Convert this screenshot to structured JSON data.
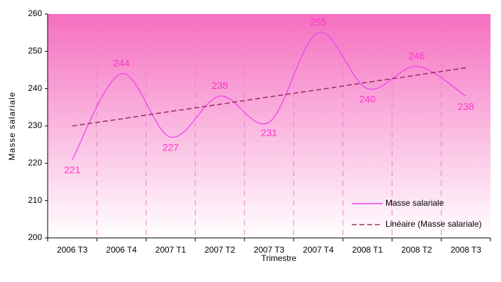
{
  "chart_data": {
    "type": "line",
    "xlabel": "Trimestre",
    "ylabel": "Masse salariale",
    "categories": [
      "2006 T3",
      "2006 T4",
      "2007 T1",
      "2007 T2",
      "2007 T3",
      "2007 T4",
      "2008 T1",
      "2008 T2",
      "2008 T3"
    ],
    "series": [
      {
        "name": "Masse salariale",
        "color": "#ee44ee",
        "values": [
          221,
          244,
          227,
          238,
          231,
          255,
          240,
          246,
          238
        ],
        "smooth": true,
        "data_labels": true
      },
      {
        "name": "Linéaire (Masse salariale)",
        "color": "#993366",
        "values": [
          230.0,
          231.9,
          233.9,
          235.8,
          237.8,
          239.7,
          241.7,
          243.6,
          245.6
        ],
        "dashed": true
      }
    ],
    "ylim": [
      200,
      260
    ],
    "yticks": [
      200,
      210,
      220,
      230,
      240,
      250,
      260
    ],
    "legend": "lower right"
  }
}
